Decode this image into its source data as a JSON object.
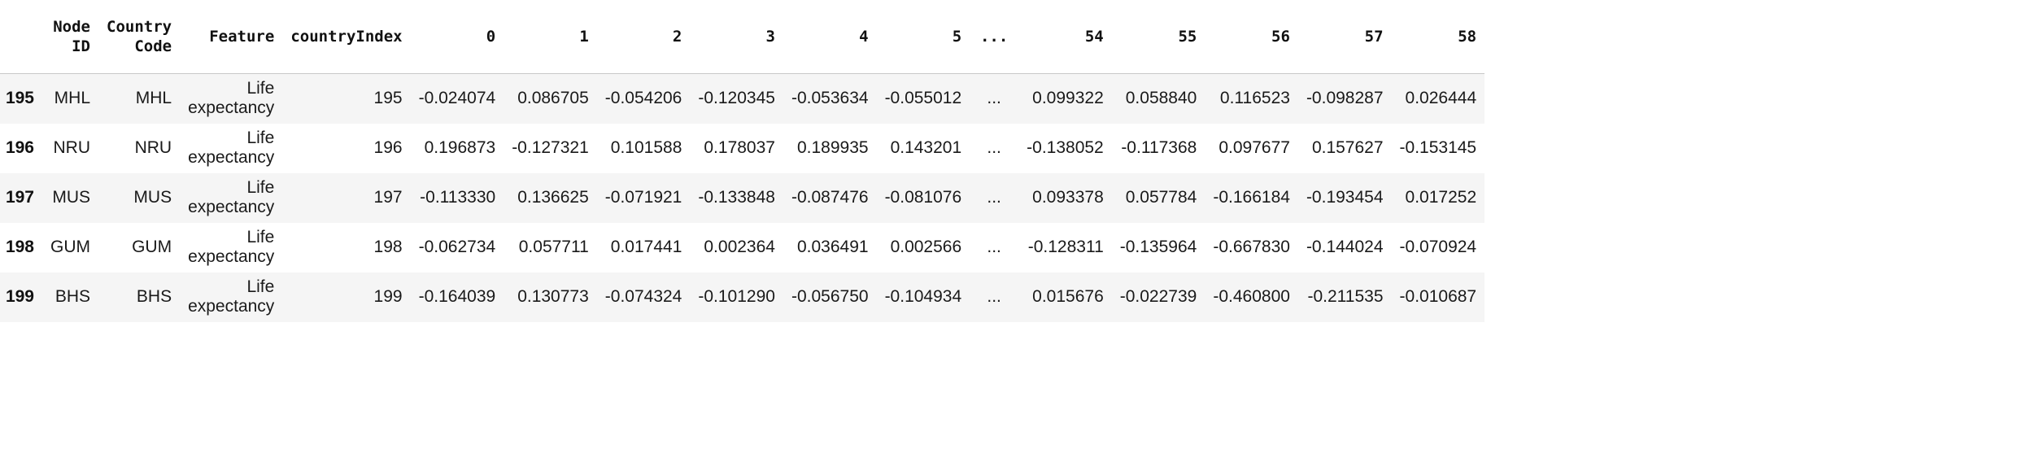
{
  "table": {
    "columns": [
      "",
      "Node ID",
      "Country Code",
      "Feature",
      "countryIndex",
      "0",
      "1",
      "2",
      "3",
      "4",
      "5",
      "...",
      "54",
      "55",
      "56",
      "57",
      "58"
    ],
    "rows": [
      {
        "index": "195",
        "cells": [
          "MHL",
          "MHL",
          "Life expectancy",
          "195",
          "-0.024074",
          "0.086705",
          "-0.054206",
          "-0.120345",
          "-0.053634",
          "-0.055012",
          "...",
          "0.099322",
          "0.058840",
          "0.116523",
          "-0.098287",
          "0.026444"
        ]
      },
      {
        "index": "196",
        "cells": [
          "NRU",
          "NRU",
          "Life expectancy",
          "196",
          "0.196873",
          "-0.127321",
          "0.101588",
          "0.178037",
          "0.189935",
          "0.143201",
          "...",
          "-0.138052",
          "-0.117368",
          "0.097677",
          "0.157627",
          "-0.153145"
        ]
      },
      {
        "index": "197",
        "cells": [
          "MUS",
          "MUS",
          "Life expectancy",
          "197",
          "-0.113330",
          "0.136625",
          "-0.071921",
          "-0.133848",
          "-0.087476",
          "-0.081076",
          "...",
          "0.093378",
          "0.057784",
          "-0.166184",
          "-0.193454",
          "0.017252"
        ]
      },
      {
        "index": "198",
        "cells": [
          "GUM",
          "GUM",
          "Life expectancy",
          "198",
          "-0.062734",
          "0.057711",
          "0.017441",
          "0.002364",
          "0.036491",
          "0.002566",
          "...",
          "-0.128311",
          "-0.135964",
          "-0.667830",
          "-0.144024",
          "-0.070924"
        ]
      },
      {
        "index": "199",
        "cells": [
          "BHS",
          "BHS",
          "Life expectancy",
          "199",
          "-0.164039",
          "0.130773",
          "-0.074324",
          "-0.101290",
          "-0.056750",
          "-0.104934",
          "...",
          "0.015676",
          "-0.022739",
          "-0.460800",
          "-0.211535",
          "-0.010687"
        ]
      }
    ]
  }
}
